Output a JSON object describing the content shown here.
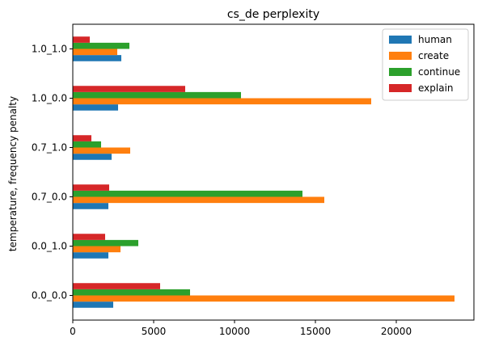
{
  "chart_data": {
    "type": "bar",
    "orientation": "horizontal",
    "title": "cs_de perplexity",
    "ylabel": "temperature, frequency penalty",
    "xlabel": "",
    "categories": [
      "0.0_0.0",
      "0.0_1.0",
      "0.7_0.0",
      "0.7_1.0",
      "1.0_0.0",
      "1.0_1.0"
    ],
    "xlim": [
      0,
      24800
    ],
    "xticks": [
      0,
      5000,
      10000,
      15000,
      20000
    ],
    "grid": false,
    "legend_position": "top-right",
    "series": [
      {
        "name": "human",
        "color": "#1f77b4",
        "values": [
          2500,
          2200,
          2200,
          2400,
          2800,
          3000
        ]
      },
      {
        "name": "create",
        "color": "#ff7f0e",
        "values": [
          23600,
          2950,
          15550,
          3550,
          18450,
          2750
        ]
      },
      {
        "name": "continue",
        "color": "#2ca02c",
        "values": [
          7250,
          4050,
          14200,
          1750,
          10400,
          3500
        ]
      },
      {
        "name": "explain",
        "color": "#d62728",
        "values": [
          5400,
          2000,
          2250,
          1150,
          6950,
          1050
        ]
      }
    ]
  }
}
